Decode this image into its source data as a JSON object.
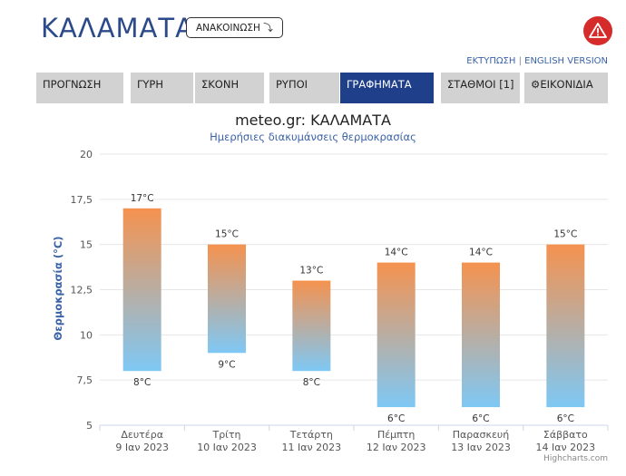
{
  "header": {
    "city": "ΚΑΛΑΜΑΤΑ",
    "announce_label": "ΑΝΑΚΟΙΝΩΣΗ ⤵",
    "alert_icon": "warning-icon",
    "print_link": "ΕΚΤΥΠΩΣΗ",
    "links_sep": "|",
    "english_link": "ENGLISH VERSION"
  },
  "tabs": [
    {
      "label": "ΠΡΟΓΝΩΣΗ",
      "active": false
    },
    {
      "label": "ΓΥΡΗ",
      "active": false
    },
    {
      "label": "ΣΚΟΝΗ",
      "active": false
    },
    {
      "label": "ΡΥΠΟΙ",
      "active": false
    },
    {
      "label": "ΓΡΑΦΗΜΑΤΑ",
      "active": true
    },
    {
      "label": "ΣΤΑΘΜΟΙ [1]",
      "active": false
    },
    {
      "label": "ΕΙΚΟΝΙΔΙΑ",
      "active": false,
      "icon": "gear-icon"
    }
  ],
  "chart_data": {
    "type": "bar",
    "title": "meteo.gr: ΚΑΛΑΜΑΤΑ",
    "subtitle": "Ημερήσιες διακυμάνσεις θερμοκρασίας",
    "ylabel": "Θερμοκρασία (°C)",
    "ylim": [
      5,
      20
    ],
    "yticks": [
      "5",
      "7,5",
      "10",
      "12,5",
      "15",
      "17,5",
      "20"
    ],
    "ytick_values": [
      5,
      7.5,
      10,
      12.5,
      15,
      17.5,
      20
    ],
    "grid": true,
    "categories": [
      {
        "day": "Δευτέρα",
        "date": "9 Ιαν 2023"
      },
      {
        "day": "Τρίτη",
        "date": "10 Ιαν 2023"
      },
      {
        "day": "Τετάρτη",
        "date": "11 Ιαν 2023"
      },
      {
        "day": "Πέμπτη",
        "date": "12 Ιαν 2023"
      },
      {
        "day": "Παρασκευή",
        "date": "13 Ιαν 2023"
      },
      {
        "day": "Σάββατο",
        "date": "14 Ιαν 2023"
      }
    ],
    "series": [
      {
        "name": "min",
        "values": [
          8,
          9,
          8,
          6,
          6,
          6
        ]
      },
      {
        "name": "max",
        "values": [
          17,
          15,
          13,
          14,
          14,
          15
        ]
      }
    ],
    "max_labels": [
      "17°C",
      "15°C",
      "13°C",
      "14°C",
      "14°C",
      "15°C"
    ],
    "min_labels": [
      "8°C",
      "9°C",
      "8°C",
      "6°C",
      "6°C",
      "6°C"
    ],
    "colors": {
      "top": "#f5924f",
      "bottom": "#7ec8f5",
      "grid": "#e6e6e6",
      "axis_title": "#3a62a8"
    }
  },
  "credit": "Highcharts.com"
}
